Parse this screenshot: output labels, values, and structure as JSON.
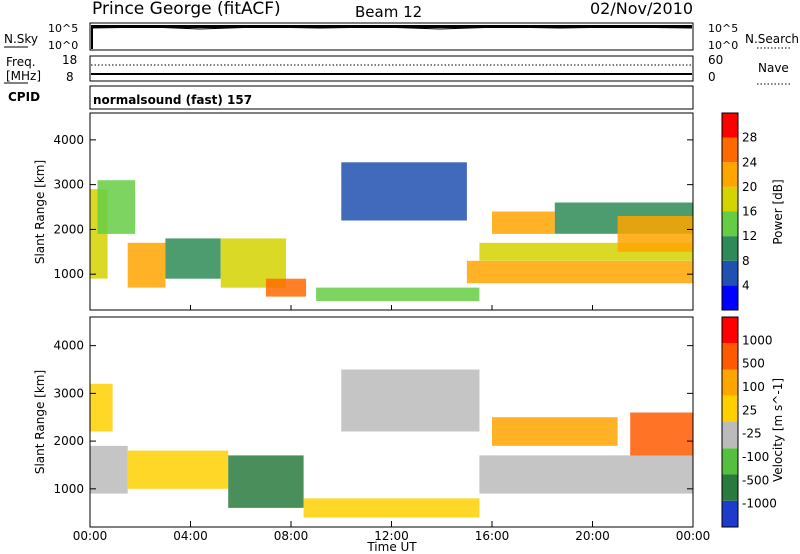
{
  "header": {
    "station": "Prince George (fitACF)",
    "beam": "Beam 12",
    "date": "02/Nov/2010"
  },
  "panels": {
    "nsky_label": "N.Sky",
    "nsky_ticks": [
      "10^5",
      "10^0"
    ],
    "nsearch_label": "N.Search",
    "nsearch_ticks": [
      "10^5",
      "10^0"
    ],
    "freq_label_line1": "Freq.",
    "freq_label_line2": "[MHz]",
    "freq_ticks": [
      "18",
      "8"
    ],
    "nave_label": "Nave",
    "nave_ticks": [
      "60",
      "0"
    ],
    "cpid_label": "CPID",
    "cpid_text": "normalsound (fast) 157"
  },
  "chart_data": [
    {
      "type": "heatmap",
      "name": "power",
      "ylabel": "Slant Range [km]",
      "ylim": [
        200,
        4600
      ],
      "yticks": [
        "1000",
        "2000",
        "3000",
        "4000"
      ],
      "xlim": [
        0,
        24
      ],
      "xlabel": "",
      "colorbar": {
        "label": "Power [dB]",
        "ticks": [
          "4",
          "8",
          "12",
          "16",
          "20",
          "24",
          "28"
        ],
        "colors": [
          "#0000ff",
          "#2050b0",
          "#2e8b57",
          "#66cc44",
          "#d4d400",
          "#ffa500",
          "#ff6a00",
          "#ff0000"
        ]
      },
      "regions": [
        {
          "t": [
            0.0,
            0.7
          ],
          "r": [
            900,
            2900
          ],
          "level": 4
        },
        {
          "t": [
            0.3,
            1.8
          ],
          "r": [
            1900,
            3100
          ],
          "level": 3
        },
        {
          "t": [
            1.5,
            3.0
          ],
          "r": [
            700,
            1700
          ],
          "level": 5
        },
        {
          "t": [
            3.0,
            5.2
          ],
          "r": [
            900,
            1800
          ],
          "level": 2
        },
        {
          "t": [
            5.2,
            7.8
          ],
          "r": [
            700,
            1800
          ],
          "level": 4
        },
        {
          "t": [
            7.0,
            8.6
          ],
          "r": [
            500,
            900
          ],
          "level": 6
        },
        {
          "t": [
            9.0,
            15.5
          ],
          "r": [
            400,
            700
          ],
          "level": 3
        },
        {
          "t": [
            10.0,
            15.0
          ],
          "r": [
            2200,
            3500
          ],
          "level": 1
        },
        {
          "t": [
            15.0,
            24.0
          ],
          "r": [
            800,
            1300
          ],
          "level": 5
        },
        {
          "t": [
            15.5,
            24.0
          ],
          "r": [
            1300,
            1700
          ],
          "level": 4
        },
        {
          "t": [
            16.0,
            18.5
          ],
          "r": [
            1900,
            2400
          ],
          "level": 5
        },
        {
          "t": [
            18.5,
            24.0
          ],
          "r": [
            1900,
            2600
          ],
          "level": 2
        },
        {
          "t": [
            21.0,
            24.0
          ],
          "r": [
            1500,
            2300
          ],
          "level": 5
        }
      ]
    },
    {
      "type": "heatmap",
      "name": "velocity",
      "ylabel": "Slant Range [km]",
      "ylim": [
        200,
        4600
      ],
      "yticks": [
        "1000",
        "2000",
        "3000",
        "4000"
      ],
      "xlim": [
        0,
        24
      ],
      "xlabel": "Time UT",
      "xticks": [
        "00:00",
        "04:00",
        "08:00",
        "12:00",
        "16:00",
        "20:00",
        "00:00"
      ],
      "colorbar": {
        "label": "Velocity [m s^-1]",
        "ticks": [
          "1000",
          "500",
          "100",
          "25",
          "-25",
          "-100",
          "-500",
          "-1000"
        ],
        "colors": [
          "#1e3ccc",
          "#2a7a40",
          "#55c040",
          "#bbbbbb",
          "#ffd000",
          "#ffa500",
          "#ff5a00",
          "#ff0000"
        ]
      },
      "regions": [
        {
          "t": [
            0.0,
            0.9
          ],
          "r": [
            2200,
            3200
          ],
          "level": 4
        },
        {
          "t": [
            0.0,
            1.5
          ],
          "r": [
            900,
            1900
          ],
          "level": 3
        },
        {
          "t": [
            1.5,
            5.5
          ],
          "r": [
            1000,
            1800
          ],
          "level": 4
        },
        {
          "t": [
            5.5,
            8.5
          ],
          "r": [
            600,
            1700
          ],
          "level": 1
        },
        {
          "t": [
            8.5,
            15.5
          ],
          "r": [
            400,
            800
          ],
          "level": 4
        },
        {
          "t": [
            10.0,
            15.5
          ],
          "r": [
            2200,
            3500
          ],
          "level": 3
        },
        {
          "t": [
            15.5,
            24.0
          ],
          "r": [
            900,
            1700
          ],
          "level": 3
        },
        {
          "t": [
            16.0,
            21.0
          ],
          "r": [
            1900,
            2500
          ],
          "level": 5
        },
        {
          "t": [
            21.5,
            24.0
          ],
          "r": [
            1700,
            2600
          ],
          "level": 6
        }
      ]
    }
  ]
}
